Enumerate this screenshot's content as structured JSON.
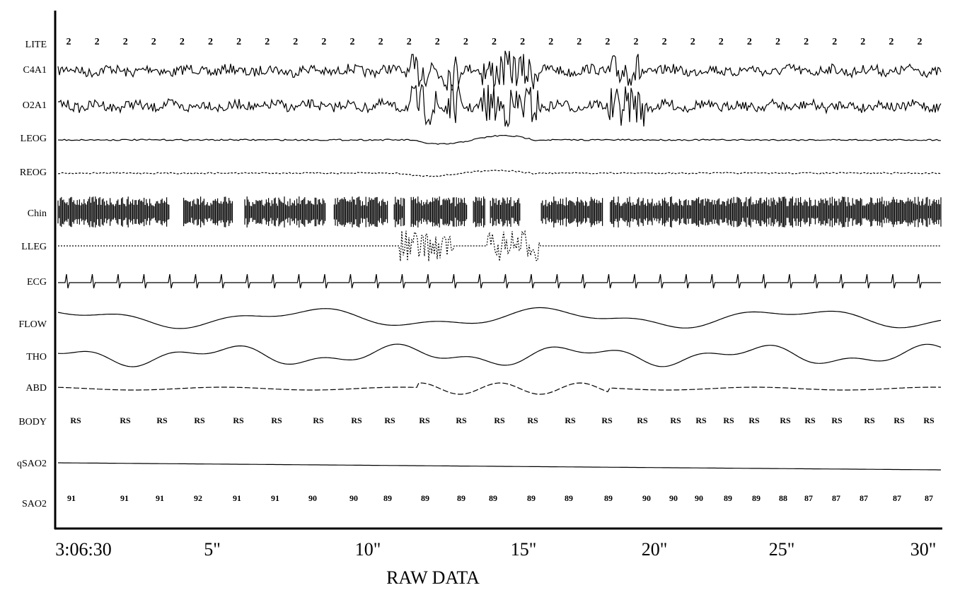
{
  "channels": [
    "LITE",
    "C4A1",
    "O2A1",
    "LEOG",
    "REOG",
    "Chin",
    "LLEG",
    "ECG",
    "FLOW",
    "THO",
    "ABD",
    "BODY",
    "qSAO2",
    "SAO2"
  ],
  "lite": [
    2,
    2,
    2,
    2,
    2,
    2,
    2,
    2,
    2,
    2,
    2,
    2,
    2,
    2,
    2,
    2,
    2,
    2,
    2,
    2,
    2,
    2,
    2,
    2,
    2,
    2,
    2,
    2,
    2,
    2,
    2
  ],
  "body": [
    "RS",
    "RS",
    "RS",
    "RS",
    "RS",
    "RS",
    "RS",
    "RS",
    "RS",
    "RS",
    "RS",
    "RS",
    "RS",
    "RS",
    "RS",
    "RS",
    "RS",
    "RS",
    "RS",
    "RS",
    "RS",
    "RS",
    "RS",
    "RS",
    "RS",
    "RS"
  ],
  "sao2": [
    91,
    91,
    91,
    92,
    91,
    91,
    90,
    90,
    89,
    89,
    89,
    89,
    89,
    89,
    89,
    90,
    90,
    90,
    89,
    89,
    88,
    87,
    87,
    87,
    87,
    87
  ],
  "time_labels": [
    "3:06:30",
    "5\"",
    "10\"",
    "15\"",
    "20\"",
    "25\"",
    "30\""
  ],
  "caption": "RAW DATA"
}
